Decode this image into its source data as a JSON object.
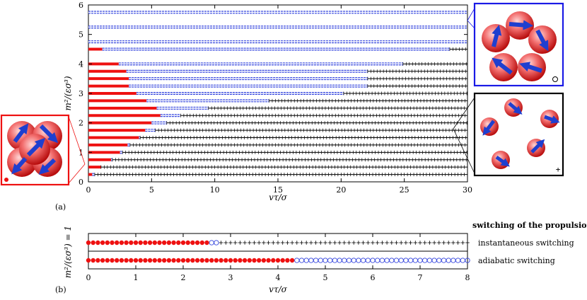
{
  "chart_data": [
    {
      "panel_label": "(a)",
      "type": "scatter",
      "xlabel": "vτ/σ",
      "ylabel": "m²/(εσ³)",
      "xlim": [
        0,
        30
      ],
      "ylim": [
        0,
        6
      ],
      "xticks": [
        "0",
        "5",
        "10",
        "15",
        "20",
        "25",
        "30"
      ],
      "yticks": [
        "0",
        "1",
        "2",
        "3",
        "4",
        "5",
        "6"
      ],
      "marker_legend_note": "filled red circle = compact cluster, open blue circle = ring-shaped cluster, plus = dispersed",
      "rows": [
        {
          "m2": 0.25,
          "red_until": 0.3,
          "blue_until": 0.5
        },
        {
          "m2": 0.5,
          "red_until": 1.0,
          "blue_until": 1.0
        },
        {
          "m2": 0.75,
          "red_until": 1.8,
          "blue_until": 1.9
        },
        {
          "m2": 1.0,
          "red_until": 2.5,
          "blue_until": 2.7
        },
        {
          "m2": 1.25,
          "red_until": 3.1,
          "blue_until": 3.3
        },
        {
          "m2": 1.5,
          "red_until": 4.0,
          "blue_until": 4.1
        },
        {
          "m2": 1.75,
          "red_until": 4.5,
          "blue_until": 5.3
        },
        {
          "m2": 2.0,
          "red_until": 5.0,
          "blue_until": 6.2
        },
        {
          "m2": 2.25,
          "red_until": 5.7,
          "blue_until": 7.3
        },
        {
          "m2": 2.5,
          "red_until": 5.4,
          "blue_until": 9.5
        },
        {
          "m2": 2.75,
          "red_until": 4.6,
          "blue_until": 14.3
        },
        {
          "m2": 3.0,
          "red_until": 3.8,
          "blue_until": 20.2
        },
        {
          "m2": 3.25,
          "red_until": 3.2,
          "blue_until": 22.1
        },
        {
          "m2": 3.5,
          "red_until": 3.2,
          "blue_until": 22.1
        },
        {
          "m2": 3.75,
          "red_until": 3.0,
          "blue_until": 22.1
        },
        {
          "m2": 4.0,
          "red_until": 2.4,
          "blue_until": 24.9
        },
        {
          "m2": 4.5,
          "red_until": 1.1,
          "blue_until": 28.6
        },
        {
          "m2": 4.75,
          "red_until": 0,
          "blue_until": 30
        },
        {
          "m2": 5.25,
          "red_until": 0,
          "blue_until": 30
        },
        {
          "m2": 5.75,
          "red_until": 0,
          "blue_until": 30
        }
      ],
      "insets": [
        {
          "name": "ring",
          "marker": "open blue circle"
        },
        {
          "name": "dispersed",
          "marker": "plus"
        },
        {
          "name": "compact",
          "marker": "filled red circle"
        }
      ]
    },
    {
      "panel_label": "(b)",
      "type": "scatter",
      "xlabel": "vτ/σ",
      "ylabel": "m²/(εσ³) = 1",
      "xlim": [
        0,
        8
      ],
      "xticks": [
        "0",
        "1",
        "2",
        "3",
        "4",
        "5",
        "6",
        "7",
        "8"
      ],
      "legend_title": "switching of the propulsion",
      "series": [
        {
          "name": "instantaneous switching",
          "red_until": 2.5,
          "blue_until": 2.7
        },
        {
          "name": "adiabatic switching",
          "red_until": 4.3,
          "blue_until": 8.0
        }
      ]
    }
  ],
  "colors": {
    "compact": "#ee1111",
    "ring": "#3344dd",
    "dispersed": "#000000",
    "ring_box": "#1a1ae6",
    "compact_box": "#ee1111",
    "dispersed_box": "#000000"
  }
}
